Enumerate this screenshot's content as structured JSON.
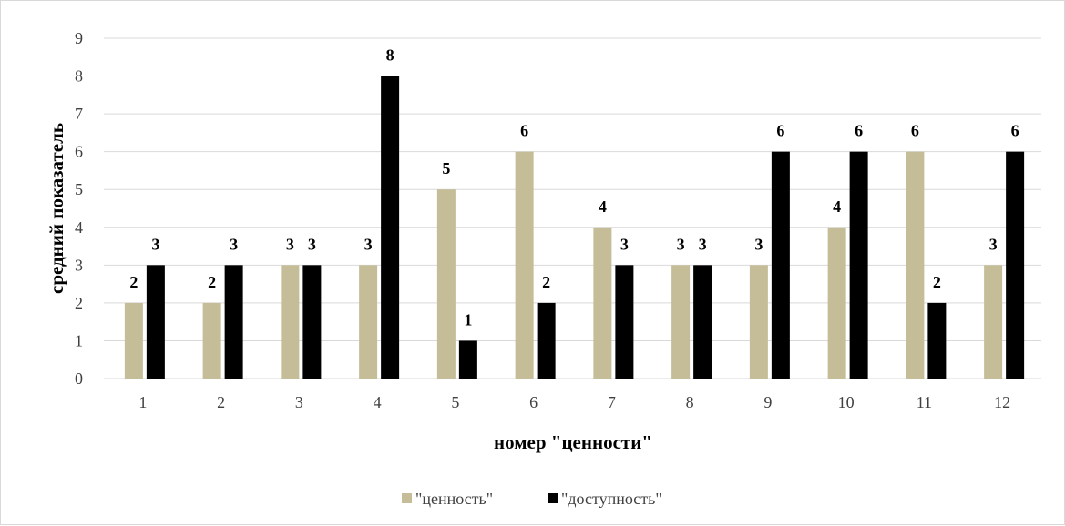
{
  "chart_data": {
    "type": "bar",
    "title": "",
    "xlabel": "номер \"ценности\"",
    "ylabel": "средний показатель",
    "ylim": [
      0,
      9
    ],
    "yticks": [
      "0",
      "1",
      "2",
      "3",
      "4",
      "5",
      "6",
      "7",
      "8",
      "9"
    ],
    "categories": [
      "1",
      "2",
      "3",
      "4",
      "5",
      "6",
      "7",
      "8",
      "9",
      "10",
      "11",
      "12"
    ],
    "series": [
      {
        "name": "\"ценность\"",
        "color": "#c4bd97",
        "values": [
          2,
          2,
          3,
          3,
          5,
          6,
          4,
          3,
          3,
          4,
          6,
          3
        ]
      },
      {
        "name": "\"доступность\"",
        "color": "#000000",
        "values": [
          3,
          3,
          3,
          8,
          1,
          2,
          3,
          3,
          6,
          6,
          2,
          6
        ]
      }
    ],
    "grid": true,
    "legend": "bottom-center",
    "data_labels": true
  }
}
